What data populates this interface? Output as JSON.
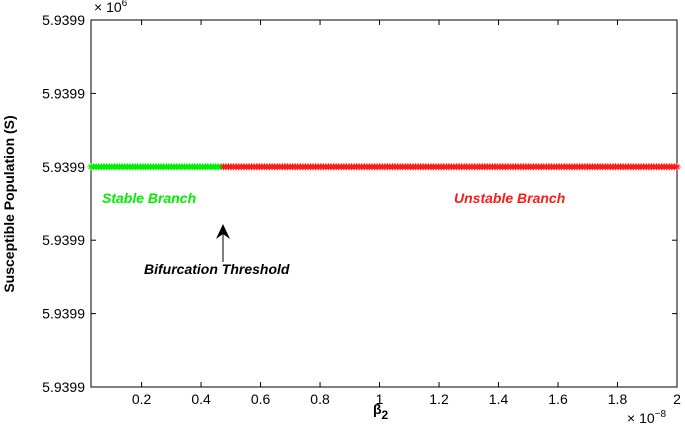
{
  "chart_data": {
    "type": "scatter",
    "title": "",
    "xlabel": "β",
    "xlabel_sub": "2",
    "ylabel": "Susceptible Population (S)",
    "x_multiplier": "× 10",
    "x_exponent": "−8",
    "y_multiplier": "× 10",
    "y_exponent": "6",
    "xlim": [
      0.03,
      2.0
    ],
    "ylim_ticks": [
      "5.9399",
      "5.9399",
      "5.9399",
      "5.9399",
      "5.9399",
      "5.9399"
    ],
    "xticks": [
      0.2,
      0.4,
      0.6,
      0.8,
      1,
      1.2,
      1.4,
      1.6,
      1.8,
      2
    ],
    "xtick_labels": [
      "0.2",
      "0.4",
      "0.6",
      "0.8",
      "1",
      "1.2",
      "1.4",
      "1.6",
      "1.8",
      "2"
    ],
    "grid": false,
    "series": [
      {
        "name": "Stable Branch",
        "color": "#00ee00",
        "x_range": [
          0.03,
          0.475
        ],
        "y_level_fraction": 0.6,
        "marker": "asterisk",
        "point_count": 52
      },
      {
        "name": "Unstable Branch",
        "color": "#ff1a1a",
        "x_range": [
          0.475,
          2.0
        ],
        "y_level_fraction": 0.6,
        "marker": "asterisk",
        "point_count": 178
      }
    ],
    "annotations": [
      {
        "text": "Bifurcation Threshold",
        "x": 0.475,
        "color": "#000000"
      }
    ],
    "labels": {
      "stable": "Stable Branch",
      "unstable": "Unstable Branch",
      "stable_color": "#00ee00",
      "unstable_color": "#ff1a1a"
    }
  }
}
